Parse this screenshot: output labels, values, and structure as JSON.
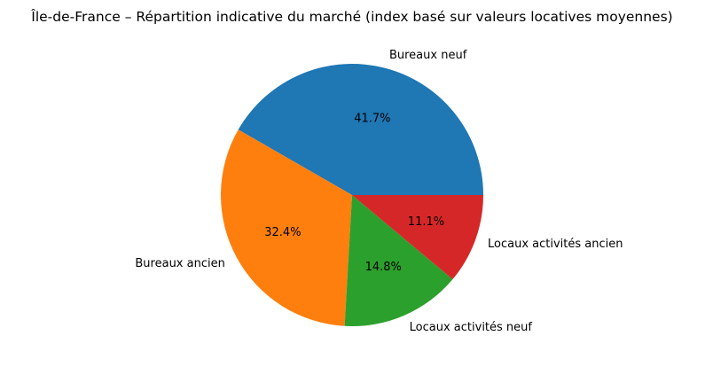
{
  "chart_data": {
    "type": "pie",
    "title": "Île-de-France – Répartition indicative du marché (index basé sur valeurs locatives moyennes)",
    "categories": [
      "Bureaux neuf",
      "Bureaux ancien",
      "Locaux activités neuf",
      "Locaux activités ancien"
    ],
    "values": [
      41.7,
      32.4,
      14.8,
      11.1
    ],
    "value_labels": [
      "41.7%",
      "32.4%",
      "14.8%",
      "11.1%"
    ],
    "colors": [
      "#1f77b4",
      "#ff7f0e",
      "#2ca02c",
      "#d62728"
    ],
    "start_angle_deg": 0,
    "direction": "counterclockwise",
    "legend": "none"
  }
}
